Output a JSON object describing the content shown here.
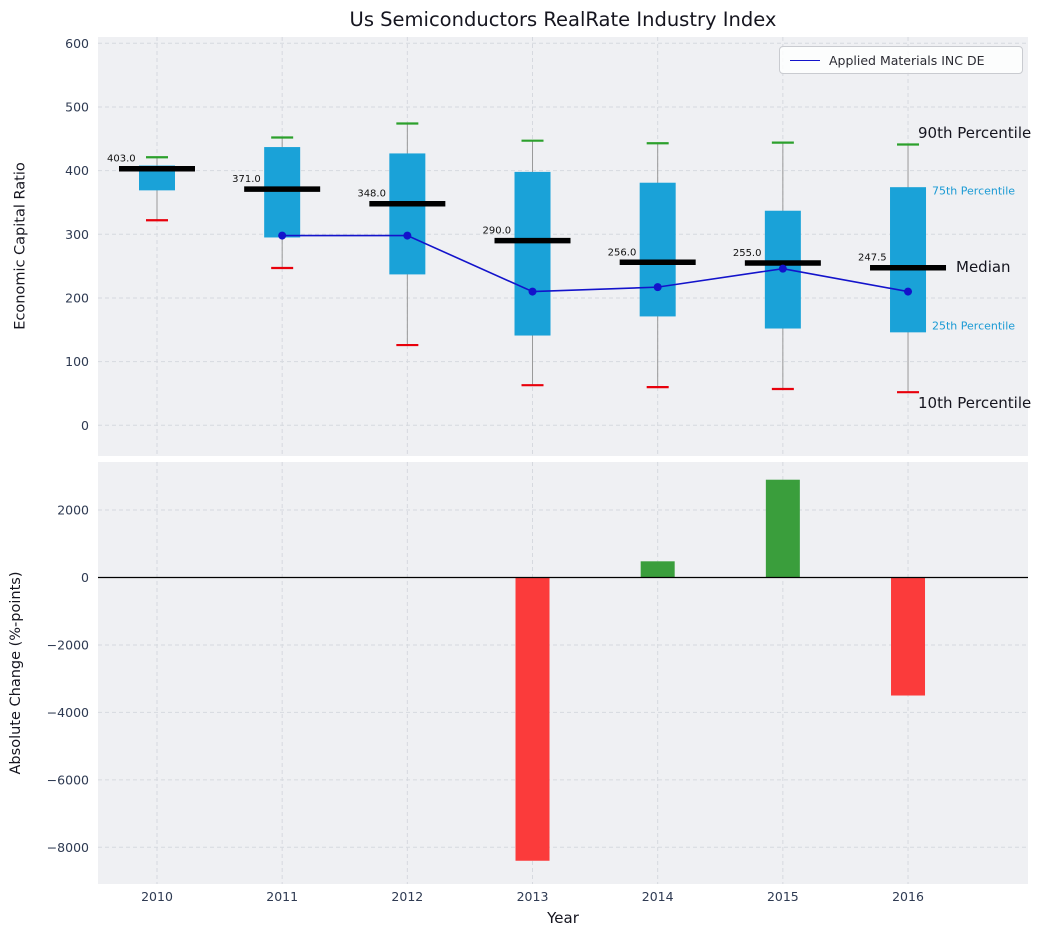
{
  "title": "Us Semiconductors RealRate Industry Index",
  "legend": {
    "label": "Applied Materials INC DE"
  },
  "colors": {
    "plot_bg": "#eff0f3",
    "grid": "#d6d9df",
    "tick_label": "#2e3a52",
    "box": "#1aa2d8",
    "median": "#000000",
    "whisker": "#999999",
    "cap_top": "#2ca02c",
    "cap_bottom": "#e8000b",
    "line": "#1313cb",
    "bar_pos": "#3a9e3c",
    "bar_neg": "#fb3b3b"
  },
  "chart_data": [
    {
      "type": "boxplot",
      "title": "Us Semiconductors RealRate Industry Index",
      "ylabel": "Economic Capital Ratio",
      "ylim": [
        -48,
        610
      ],
      "yticks": [
        0,
        100,
        200,
        300,
        400,
        500,
        600
      ],
      "years": [
        2010,
        2011,
        2012,
        2013,
        2014,
        2015,
        2016
      ],
      "boxes": [
        {
          "year": 2010,
          "p10": 322,
          "p25": 369,
          "median": 403,
          "p75": 408,
          "p90": 421,
          "median_label": "403.0"
        },
        {
          "year": 2011,
          "p10": 247,
          "p25": 295,
          "median": 371,
          "p75": 437,
          "p90": 452,
          "median_label": "371.0"
        },
        {
          "year": 2012,
          "p10": 126,
          "p25": 237,
          "median": 348,
          "p75": 427,
          "p90": 474,
          "median_label": "348.0"
        },
        {
          "year": 2013,
          "p10": 63,
          "p25": 141,
          "median": 290,
          "p75": 398,
          "p90": 447,
          "median_label": "290.0"
        },
        {
          "year": 2014,
          "p10": 60,
          "p25": 171,
          "median": 256,
          "p75": 381,
          "p90": 443,
          "median_label": "256.0"
        },
        {
          "year": 2015,
          "p10": 57,
          "p25": 152,
          "median": 255,
          "p75": 337,
          "p90": 444,
          "median_label": "255.0"
        },
        {
          "year": 2016,
          "p10": 52,
          "p25": 146,
          "median": 247.5,
          "p75": 374,
          "p90": 441,
          "median_label": "247.5"
        }
      ],
      "series": [
        {
          "name": "Applied Materials INC DE",
          "x": [
            2011,
            2012,
            2013,
            2014,
            2015,
            2016
          ],
          "y": [
            298,
            298,
            210,
            217,
            246,
            210
          ]
        }
      ],
      "percentile_labels": [
        {
          "text": "90th Percentile",
          "value": 459,
          "x": 918,
          "style": "large",
          "color": "#15151f"
        },
        {
          "text": "75th Percentile",
          "value": 370,
          "x": 932,
          "style": "small",
          "color": "#1a9ad4"
        },
        {
          "text": "Median",
          "value": 249,
          "x": 956,
          "style": "large",
          "color": "#15151f"
        },
        {
          "text": "25th Percentile",
          "value": 158,
          "x": 932,
          "style": "small",
          "color": "#1a9ad4"
        },
        {
          "text": "10th Percentile",
          "value": 35,
          "x": 918,
          "style": "large",
          "color": "#15151f"
        }
      ]
    },
    {
      "type": "bar",
      "ylabel": "Absolute Change (%-points)",
      "xlabel": "Year",
      "ylim": [
        -9100,
        3400
      ],
      "yticks": [
        2000,
        0,
        -2000,
        -4000,
        -6000,
        -8000
      ],
      "categories": [
        2010,
        2011,
        2012,
        2013,
        2014,
        2015,
        2016
      ],
      "values": [
        null,
        null,
        null,
        -8400,
        480,
        2900,
        -3500
      ]
    }
  ]
}
